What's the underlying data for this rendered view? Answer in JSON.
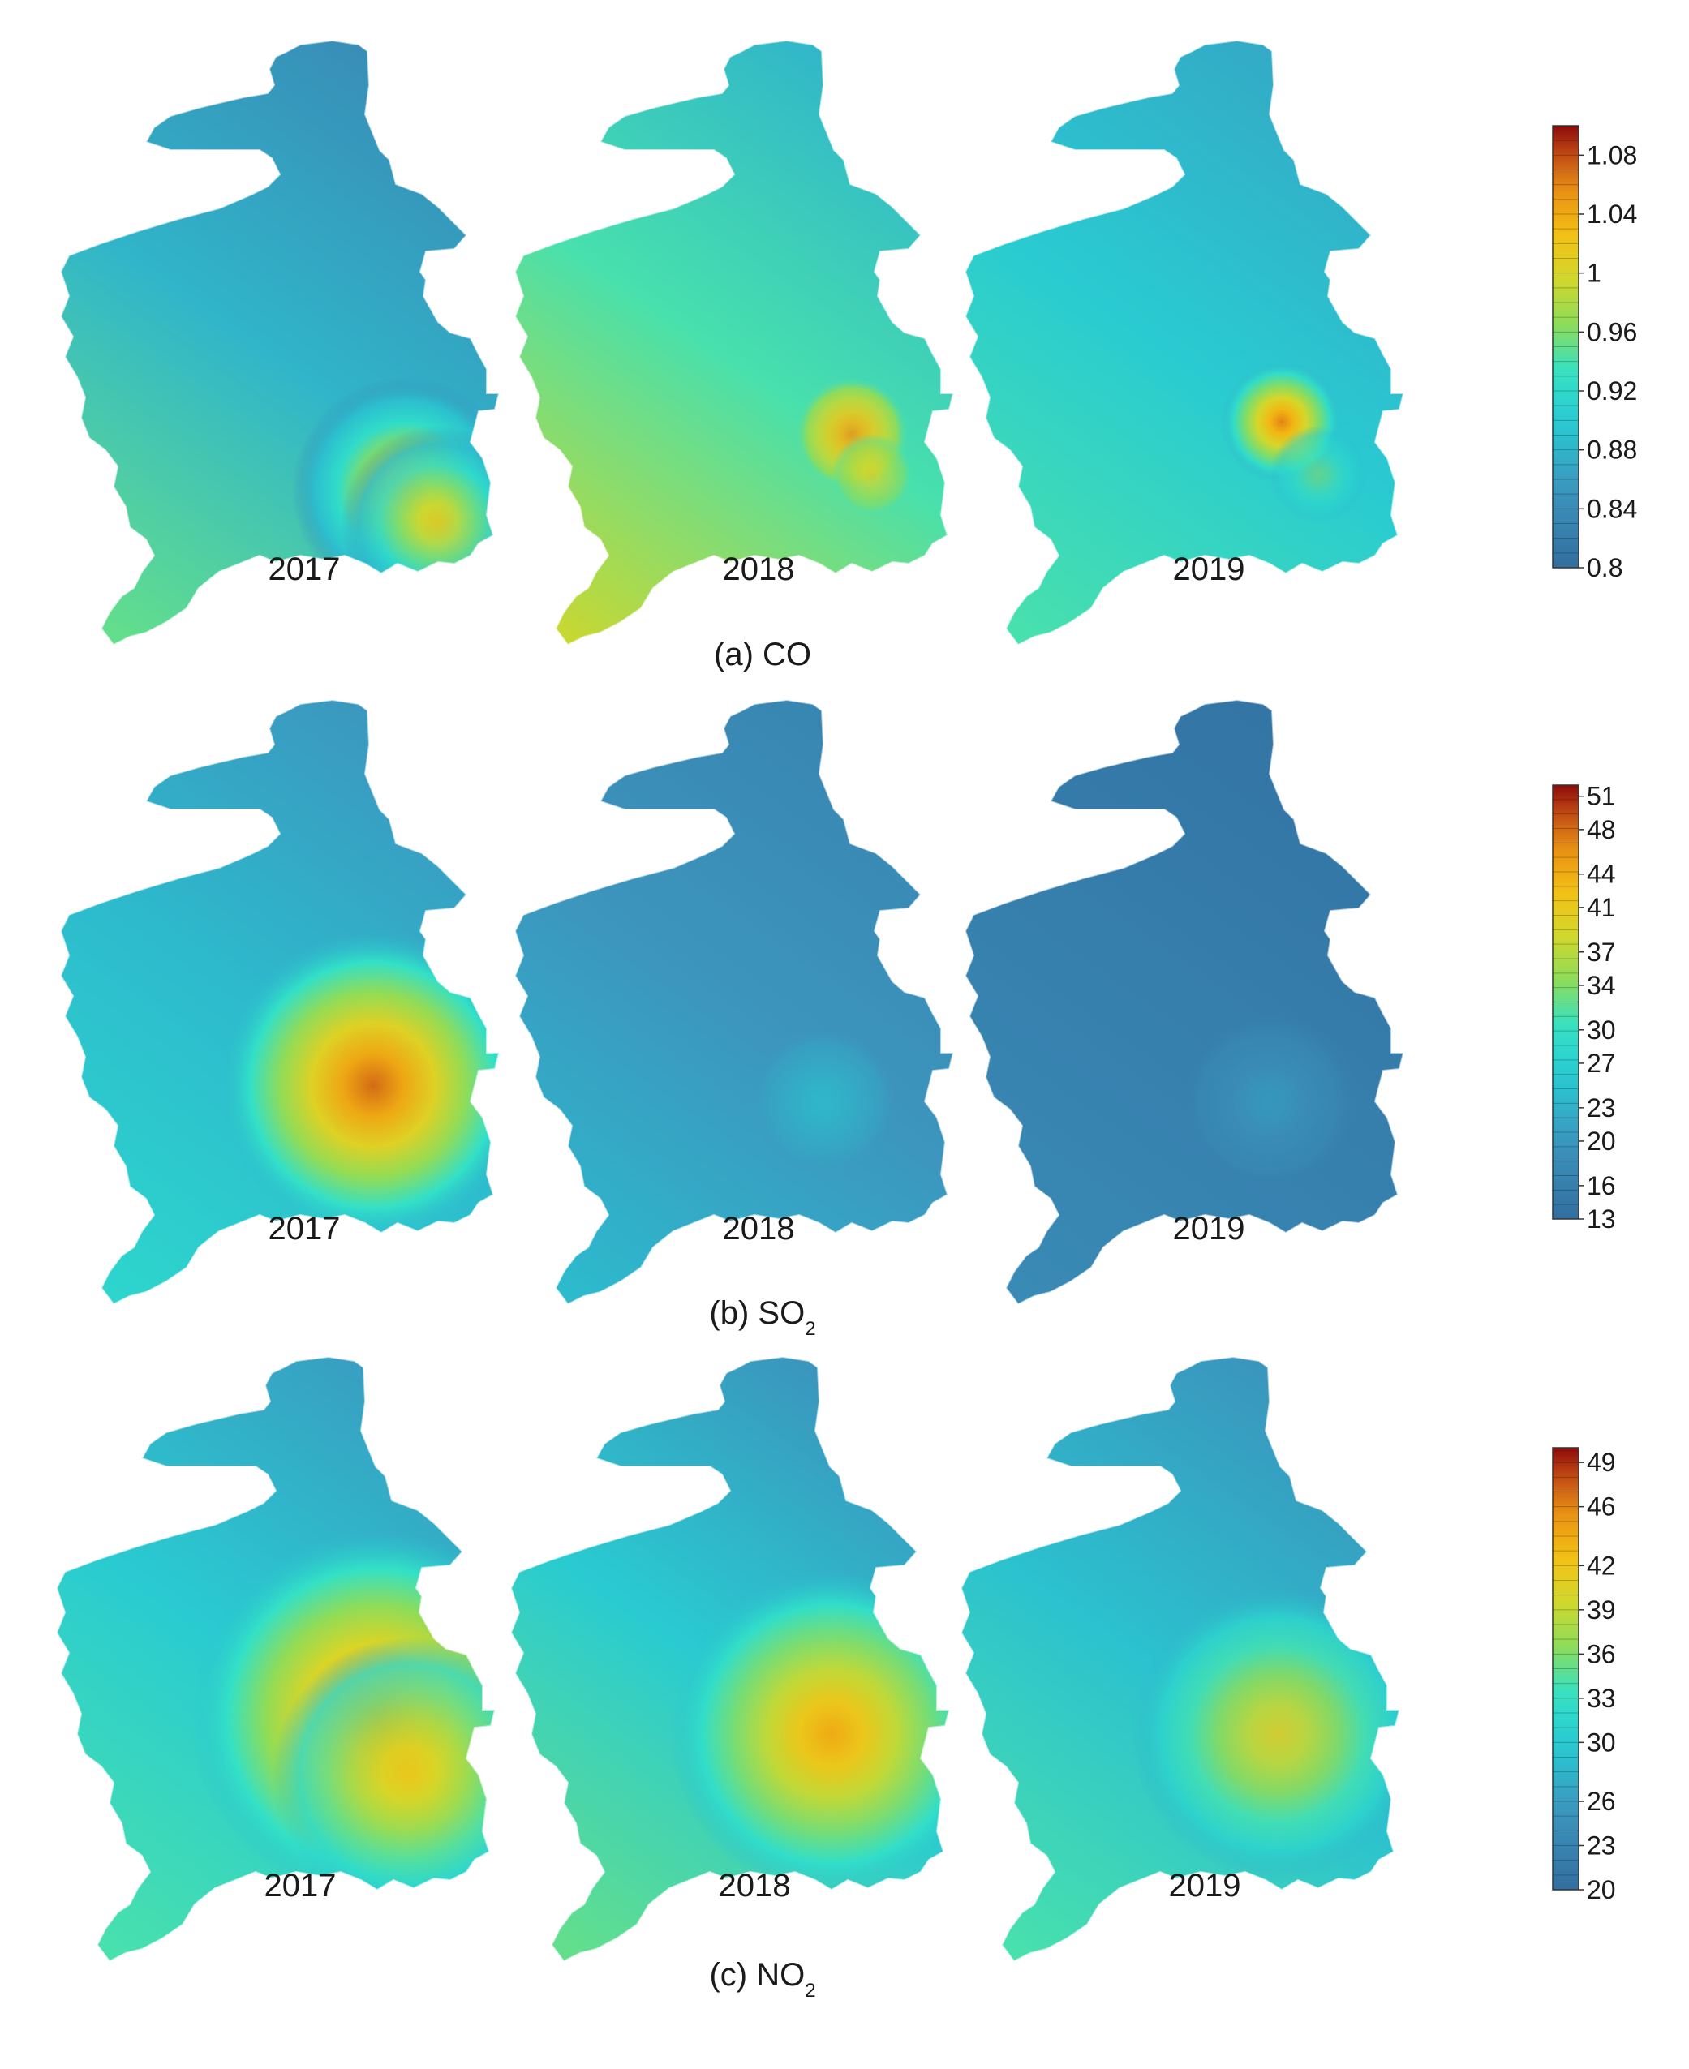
{
  "panels": [
    {
      "id": "co",
      "caption": "(a) CO",
      "years": [
        {
          "label": "2017",
          "base": 0.84,
          "gradient": [
            0.84,
            0.88,
            0.95
          ],
          "hotspots": [
            {
              "value": 1.03,
              "strength": 0.9
            },
            {
              "value": 1.02,
              "strength": 0.7
            }
          ]
        },
        {
          "label": "2018",
          "base": 0.94,
          "gradient": [
            0.88,
            0.94,
            0.99
          ],
          "hotspots": [
            {
              "value": 1.05,
              "strength": 0.8
            },
            {
              "value": 1.01,
              "strength": 0.6
            }
          ]
        },
        {
          "label": "2019",
          "base": 0.88,
          "gradient": [
            0.87,
            0.9,
            0.94
          ],
          "hotspots": [
            {
              "value": 1.06,
              "strength": 0.9
            },
            {
              "value": 0.97,
              "strength": 0.4
            }
          ]
        }
      ],
      "colorbar": {
        "min": 0.8,
        "max": 1.1,
        "ticks": [
          "1.08",
          "1.04",
          "1",
          "0.96",
          "0.92",
          "0.88",
          "0.84",
          "0.8"
        ]
      }
    },
    {
      "id": "so2",
      "caption": "(b) SO",
      "caption_sub": "2",
      "years": [
        {
          "label": "2017",
          "base": 24,
          "gradient": [
            20,
            24,
            28
          ],
          "hotspots": [
            {
              "value": 48,
              "strength": 1.0
            }
          ]
        },
        {
          "label": "2018",
          "base": 20,
          "gradient": [
            17,
            20,
            24
          ],
          "hotspots": [
            {
              "value": 26,
              "strength": 0.5
            }
          ]
        },
        {
          "label": "2019",
          "base": 16,
          "gradient": [
            14,
            16,
            18
          ],
          "hotspots": [
            {
              "value": 22,
              "strength": 0.5
            }
          ]
        }
      ],
      "colorbar": {
        "min": 13,
        "max": 52,
        "ticks": [
          "51",
          "48",
          "44",
          "41",
          "37",
          "34",
          "30",
          "27",
          "23",
          "20",
          "16",
          "13"
        ]
      }
    },
    {
      "id": "no2",
      "caption": "(c) NO",
      "caption_sub": "2",
      "years": [
        {
          "label": "2017",
          "base": 29,
          "gradient": [
            26,
            30,
            34
          ],
          "hotspots": [
            {
              "value": 46,
              "strength": 1.0
            },
            {
              "value": 42,
              "strength": 0.7
            }
          ]
        },
        {
          "label": "2018",
          "base": 29,
          "gradient": [
            25,
            30,
            35
          ],
          "hotspots": [
            {
              "value": 44,
              "strength": 0.9
            }
          ]
        },
        {
          "label": "2019",
          "base": 28,
          "gradient": [
            25,
            29,
            34
          ],
          "hotspots": [
            {
              "value": 41,
              "strength": 0.8
            }
          ]
        }
      ],
      "colorbar": {
        "min": 20,
        "max": 50,
        "ticks": [
          "49",
          "46",
          "42",
          "39",
          "36",
          "33",
          "30",
          "26",
          "23",
          "20"
        ]
      }
    }
  ]
}
